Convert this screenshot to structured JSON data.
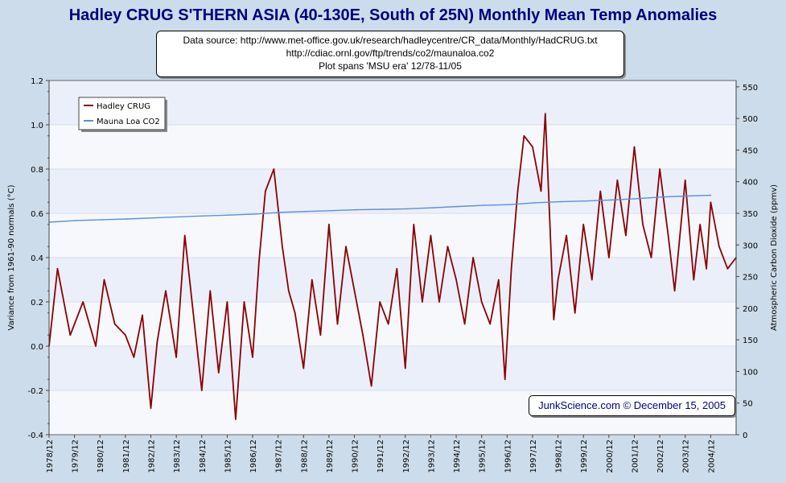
{
  "chart_data": {
    "type": "line",
    "title": "Hadley CRUG S'THERN ASIA (40-130E, South of 25N) Monthly Mean Temp Anomalies",
    "source_lines": [
      "Data source: http://www.met-office.gov.uk/research/hadleycentre/CR_data/Monthly/HadCRUG.txt",
      "http://cdiac.ornl.gov/ftp/trends/co2/maunaloa.co2",
      "Plot spans 'MSU era' 12/78-11/05"
    ],
    "credit": "JunkScience.com © December 15, 2005",
    "ylabel_left": "Variance from 1961-90 normals (°C)",
    "ylabel_right": "Atmospheric Carbon Dioxide (ppmv)",
    "xlabel": "",
    "ylim_left": [
      -0.4,
      1.2
    ],
    "ylim_right": [
      0,
      560
    ],
    "yticks_left": [
      "1.2",
      "1.0",
      "0.8",
      "0.6",
      "0.4",
      "0.2",
      "0.0",
      "-0.2",
      "-0.4"
    ],
    "yticks_right": [
      "550",
      "500",
      "450",
      "400",
      "350",
      "300",
      "250",
      "200",
      "150",
      "100",
      "50",
      "0"
    ],
    "x_tick_labels": [
      "1978/12",
      "1979/12",
      "1980/12",
      "1981/12",
      "1982/12",
      "1983/12",
      "1984/12",
      "1985/12",
      "1986/12",
      "1987/12",
      "1988/12",
      "1989/12",
      "1990/12",
      "1991/12",
      "1992/12",
      "1993/12",
      "1994/12",
      "1995/12",
      "1996/12",
      "1997/12",
      "1998/12",
      "1999/12",
      "2000/12",
      "2001/12",
      "2002/12",
      "2003/12",
      "2004/12"
    ],
    "legend": [
      {
        "label": "Hadley CRUG",
        "color": "#8b0000"
      },
      {
        "label": "Mauna Loa CO2",
        "color": "#5b8fd8"
      }
    ],
    "legend_position": "top-left",
    "grid": true,
    "x_range": [
      1978.917,
      2005.917
    ],
    "series": [
      {
        "name": "Hadley CRUG",
        "axis": "left",
        "color": "#8b0000",
        "x": [
          1978.917,
          1979.25,
          1979.75,
          1980.25,
          1980.75,
          1981.083,
          1981.5,
          1981.917,
          1982.25,
          1982.583,
          1982.917,
          1983.167,
          1983.5,
          1983.917,
          1984.25,
          1984.583,
          1984.917,
          1985.25,
          1985.583,
          1985.917,
          1986.25,
          1986.583,
          1986.917,
          1987.167,
          1987.417,
          1987.75,
          1988.083,
          1988.333,
          1988.583,
          1988.917,
          1989.25,
          1989.583,
          1989.917,
          1990.25,
          1990.583,
          1990.917,
          1991.25,
          1991.583,
          1991.917,
          1992.25,
          1992.583,
          1992.917,
          1993.25,
          1993.583,
          1993.917,
          1994.25,
          1994.583,
          1994.917,
          1995.25,
          1995.583,
          1995.917,
          1996.25,
          1996.583,
          1996.833,
          1997.083,
          1997.333,
          1997.583,
          1997.917,
          1998.25,
          1998.417,
          1998.583,
          1998.75,
          1998.917,
          1999.25,
          1999.583,
          1999.917,
          2000.25,
          2000.583,
          2000.917,
          2001.25,
          2001.583,
          2001.917,
          2002.25,
          2002.583,
          2002.917,
          2003.25,
          2003.5,
          2003.917,
          2004.25,
          2004.5,
          2004.75,
          2004.917,
          2005.25,
          2005.583,
          2005.917
        ],
        "values": [
          0.0,
          0.35,
          0.05,
          0.2,
          0.0,
          0.3,
          0.1,
          0.05,
          -0.05,
          0.14,
          -0.28,
          0.02,
          0.25,
          -0.05,
          0.5,
          0.15,
          -0.2,
          0.25,
          -0.12,
          0.2,
          -0.33,
          0.2,
          -0.05,
          0.38,
          0.7,
          0.8,
          0.45,
          0.25,
          0.15,
          -0.1,
          0.3,
          0.05,
          0.55,
          0.1,
          0.45,
          0.25,
          0.05,
          -0.18,
          0.2,
          0.1,
          0.35,
          -0.1,
          0.55,
          0.2,
          0.5,
          0.2,
          0.45,
          0.3,
          0.1,
          0.4,
          0.2,
          0.1,
          0.3,
          -0.15,
          0.35,
          0.7,
          0.95,
          0.9,
          0.7,
          1.05,
          0.6,
          0.12,
          0.3,
          0.5,
          0.15,
          0.55,
          0.3,
          0.7,
          0.4,
          0.75,
          0.5,
          0.9,
          0.55,
          0.4,
          0.8,
          0.5,
          0.25,
          0.75,
          0.3,
          0.55,
          0.35,
          0.65,
          0.45,
          0.35,
          0.4
        ]
      },
      {
        "name": "Mauna Loa CO2",
        "axis": "right",
        "color": "#5b8fd8",
        "x": [
          1978.917,
          1980.0,
          1981.0,
          1982.0,
          1983.0,
          1984.0,
          1985.0,
          1986.0,
          1987.0,
          1988.0,
          1989.0,
          1990.0,
          1991.0,
          1992.0,
          1993.0,
          1994.0,
          1995.0,
          1996.0,
          1997.0,
          1998.0,
          1999.0,
          2000.0,
          2001.0,
          2002.0,
          2003.0,
          2004.0,
          2004.917
        ],
        "values": [
          336,
          338.7,
          339.9,
          341.1,
          342.8,
          344.4,
          345.9,
          347.2,
          348.9,
          351.5,
          352.9,
          354.2,
          355.6,
          356.4,
          357.1,
          358.8,
          360.8,
          362.6,
          363.7,
          366.7,
          368.3,
          369.5,
          371.1,
          373.2,
          375.8,
          377.4,
          378.5
        ]
      }
    ]
  }
}
